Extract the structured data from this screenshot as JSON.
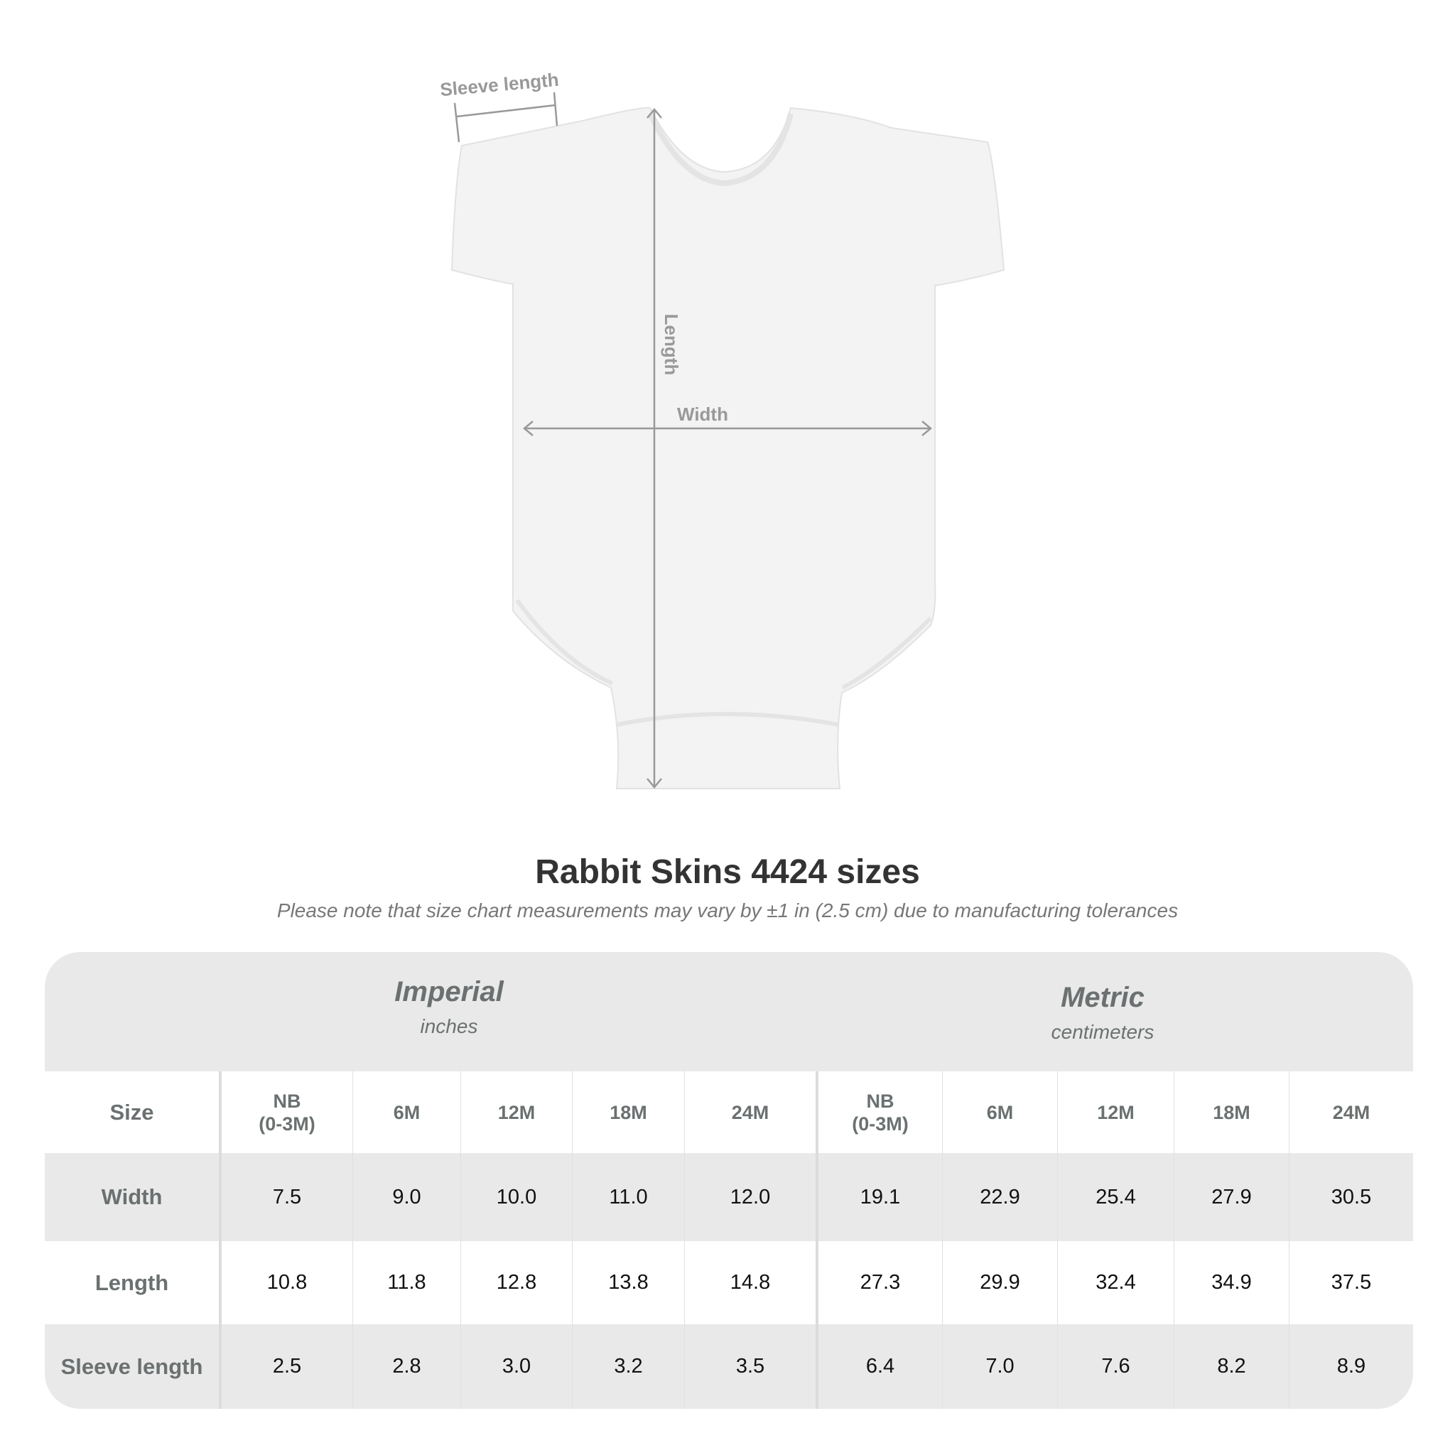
{
  "diagram": {
    "labels": {
      "sleeve_length": "Sleeve length",
      "length": "Length",
      "width": "Width"
    },
    "garment_color": "#f2f2f2",
    "measure_line_color": "#999999"
  },
  "title": "Rabbit Skins 4424 sizes",
  "subtitle": "Please note that size chart measurements may vary by ±1 in (2.5 cm) due to manufacturing tolerances",
  "table": {
    "imperial": {
      "name": "Imperial",
      "unit": "inches"
    },
    "metric": {
      "name": "Metric",
      "unit": "centimeters"
    },
    "size_label": "Size",
    "sizes": [
      [
        "NB",
        "(0-3M)"
      ],
      [
        "6M"
      ],
      [
        "12M"
      ],
      [
        "18M"
      ],
      [
        "24M"
      ]
    ],
    "rows": [
      {
        "label": "Width",
        "imperial": [
          "7.5",
          "9.0",
          "10.0",
          "11.0",
          "12.0"
        ],
        "metric": [
          "19.1",
          "22.9",
          "25.4",
          "27.9",
          "30.5"
        ]
      },
      {
        "label": "Length",
        "imperial": [
          "10.8",
          "11.8",
          "12.8",
          "13.8",
          "14.8"
        ],
        "metric": [
          "27.3",
          "29.9",
          "32.4",
          "34.9",
          "37.5"
        ]
      },
      {
        "label": "Sleeve length",
        "imperial": [
          "2.5",
          "2.8",
          "3.0",
          "3.2",
          "3.5"
        ],
        "metric": [
          "6.4",
          "7.0",
          "7.6",
          "8.2",
          "8.9"
        ]
      }
    ],
    "band_color": "#e9e9e9",
    "label_color": "#6b7070"
  }
}
